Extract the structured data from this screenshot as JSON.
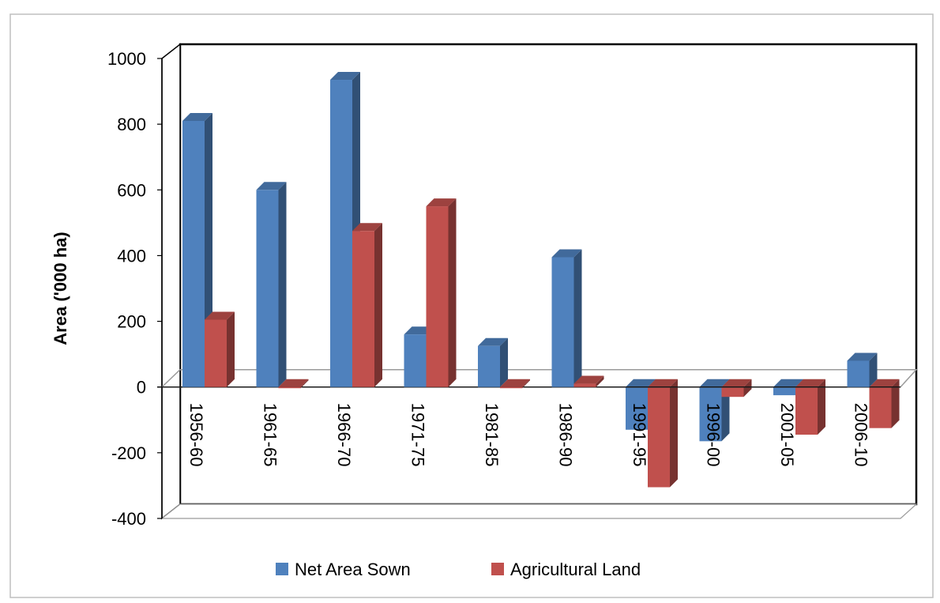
{
  "chart_data": {
    "type": "bar",
    "title": "",
    "xlabel": "",
    "ylabel": "Area ('000 ha)",
    "ylim": [
      -400,
      1000
    ],
    "yticks": [
      1000,
      800,
      600,
      400,
      200,
      0,
      -200,
      -400
    ],
    "categories": [
      "1956-60",
      "1961-65",
      "1966-70",
      "1971-75",
      "1981-85",
      "1986-90",
      "1991-95",
      "1996-00",
      "2001-05",
      "2006-10"
    ],
    "series": [
      {
        "name": "Net Area Sown",
        "color": "#4F81BD",
        "values": [
          810,
          600,
          935,
          160,
          125,
          395,
          -130,
          -165,
          -25,
          80
        ]
      },
      {
        "name": "Agricultural Land",
        "color": "#C0504D",
        "values": [
          205,
          0,
          475,
          550,
          0,
          10,
          -305,
          -30,
          -145,
          -125
        ]
      }
    ],
    "legend_position": "bottom",
    "grid": false,
    "three_d": true
  }
}
